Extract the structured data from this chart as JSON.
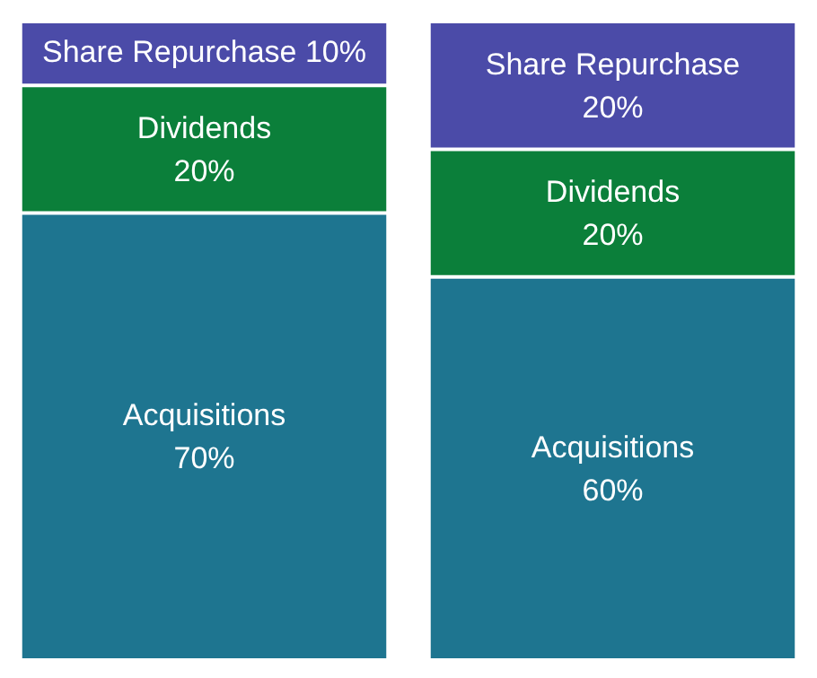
{
  "chart_data": {
    "type": "bar",
    "stacked": true,
    "categories": [
      null,
      null
    ],
    "series": [
      {
        "name": "Acquisitions",
        "color": "#1e7590",
        "values": [
          70,
          60
        ],
        "value_labels": [
          "70%",
          "60%"
        ]
      },
      {
        "name": "Dividends",
        "color": "#0b7f3a",
        "values": [
          20,
          20
        ],
        "value_labels": [
          "20%",
          "20%"
        ]
      },
      {
        "name": "Share Repurchase",
        "color": "#4b4ba8",
        "values": [
          10,
          20
        ],
        "value_labels": [
          "10%",
          "20%"
        ]
      }
    ]
  }
}
